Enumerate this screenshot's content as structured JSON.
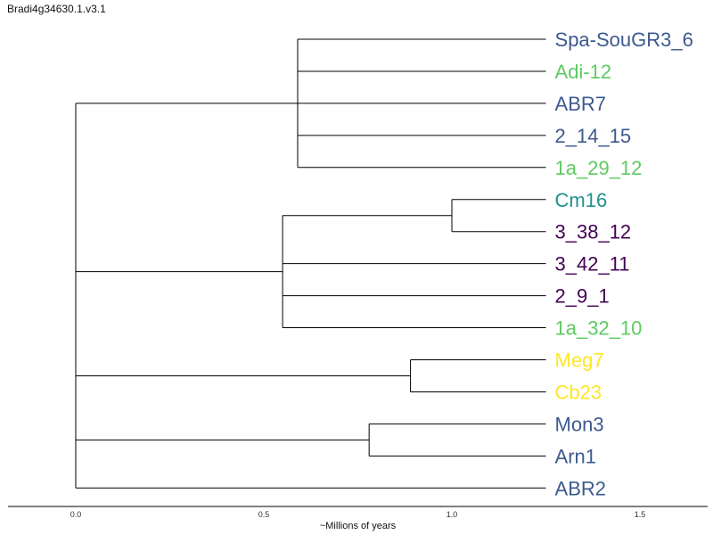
{
  "title": "Bradi4g34630.1.v3.1",
  "colors": {
    "blue": "#3d5a8e",
    "green": "#5ec962",
    "teal": "#21918c",
    "purple": "#440154",
    "yellow": "#fde725"
  },
  "axis": {
    "label": "~Millions of years",
    "ticks": [
      "0.0",
      "0.5",
      "1.0",
      "1.5"
    ],
    "tick_values": [
      0.0,
      0.5,
      1.0,
      1.5
    ],
    "range": [
      -0.18,
      1.68
    ]
  },
  "leaves": [
    {
      "name": "Spa-SouGR3_6",
      "color": "blue",
      "tip": 1.25
    },
    {
      "name": "Adi-12",
      "color": "green",
      "tip": 1.25
    },
    {
      "name": "ABR7",
      "color": "blue",
      "tip": 1.25
    },
    {
      "name": "2_14_15",
      "color": "blue",
      "tip": 1.25
    },
    {
      "name": "1a_29_12",
      "color": "green",
      "tip": 1.25
    },
    {
      "name": "Cm16",
      "color": "teal",
      "tip": 1.25
    },
    {
      "name": "3_38_12",
      "color": "purple",
      "tip": 1.25
    },
    {
      "name": "3_42_11",
      "color": "purple",
      "tip": 1.25
    },
    {
      "name": "2_9_1",
      "color": "purple",
      "tip": 1.25
    },
    {
      "name": "1a_32_10",
      "color": "green",
      "tip": 1.25
    },
    {
      "name": "Meg7",
      "color": "yellow",
      "tip": 1.25
    },
    {
      "name": "Cb23",
      "color": "yellow",
      "tip": 1.25
    },
    {
      "name": "Mon3",
      "color": "blue",
      "tip": 1.25
    },
    {
      "name": "Arn1",
      "color": "blue",
      "tip": 1.25
    },
    {
      "name": "ABR2",
      "color": "blue",
      "tip": 1.25
    }
  ],
  "tree": {
    "depth": 0.0,
    "children": [
      {
        "depth": 0.59,
        "children": [
          {
            "leaf": 0
          },
          {
            "leaf": 1
          },
          {
            "leaf": 2
          },
          {
            "leaf": 3
          },
          {
            "leaf": 4
          }
        ]
      },
      {
        "depth": 0.55,
        "children": [
          {
            "depth": 1.0,
            "children": [
              {
                "leaf": 5
              },
              {
                "leaf": 6
              }
            ]
          },
          {
            "leaf": 7
          },
          {
            "leaf": 8
          },
          {
            "leaf": 9
          }
        ]
      },
      {
        "depth": 0.89,
        "children": [
          {
            "leaf": 10
          },
          {
            "leaf": 11
          }
        ]
      },
      {
        "depth": 0.78,
        "children": [
          {
            "leaf": 12
          },
          {
            "leaf": 13
          }
        ]
      },
      {
        "leaf": 14
      }
    ]
  }
}
